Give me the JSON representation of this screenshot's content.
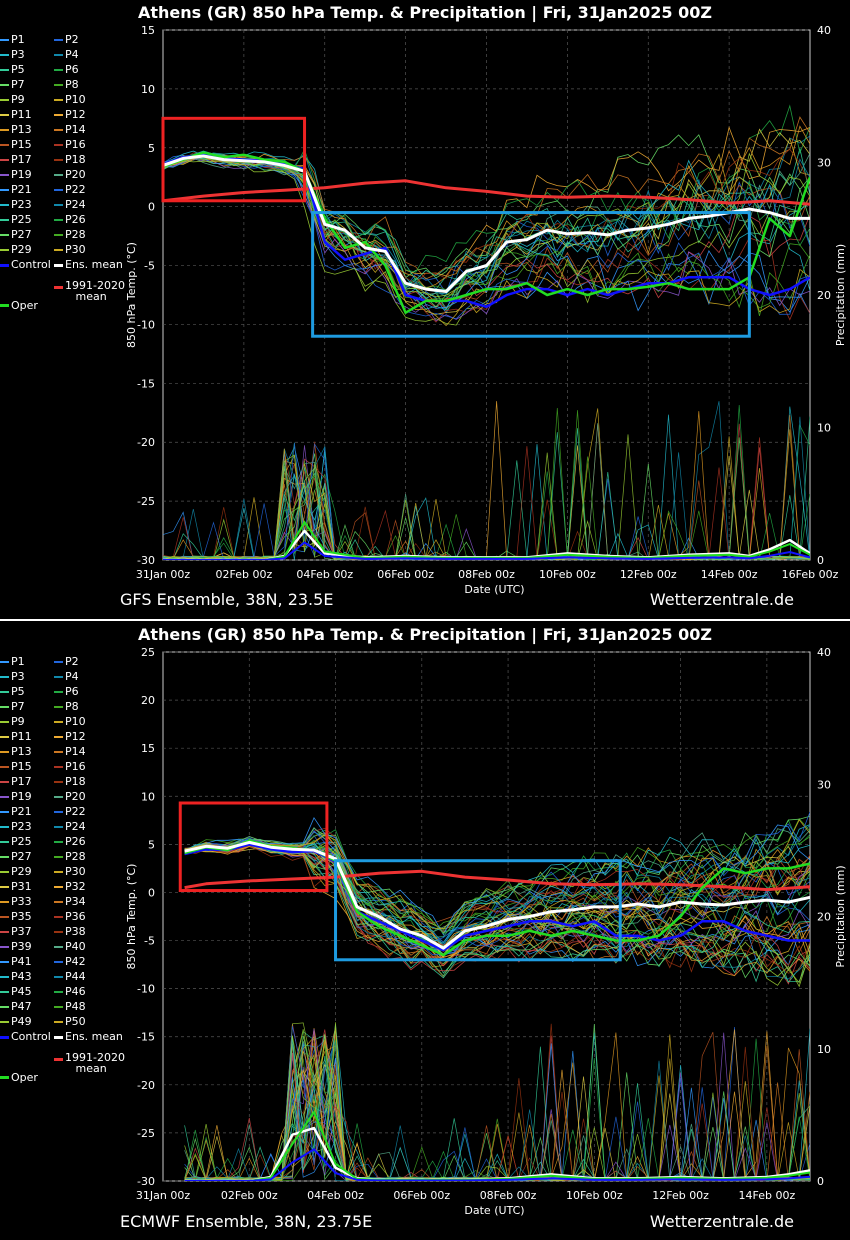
{
  "colors": {
    "control": "#1010ff",
    "mean": "#ffffff",
    "oper": "#22dd22",
    "climate": "#ee3333",
    "highlight_red": "#ee2222",
    "highlight_blue": "#1e9be0"
  },
  "chart_data": [
    {
      "type": "line",
      "title": "Athens  (GR)  850 hPa Temp. & Precipitation | Fri, 31Jan2025 00Z",
      "xlabel": "Date (UTC)",
      "ylabel": "850 hPa Temp. (°C)",
      "y2label": "Precipitation (mm)",
      "x_ticks": [
        "31Jan 00z",
        "02Feb 00z",
        "04Feb 00z",
        "06Feb 00z",
        "08Feb 00z",
        "10Feb 00z",
        "12Feb 00z",
        "14Feb 00z",
        "16Feb 00z"
      ],
      "y_ticks": [
        "15",
        "10",
        "5",
        "0",
        "-5",
        "-10",
        "-15",
        "-20",
        "-25",
        "-30"
      ],
      "y2_ticks": [
        "40",
        "30",
        "20",
        "10",
        "0"
      ],
      "ylim": [
        -30,
        15
      ],
      "y2lim": [
        0,
        40
      ],
      "xlim_days": [
        0,
        16
      ],
      "grid": true,
      "legend_placement": "left",
      "source": "GFS Ensemble, 38N, 23.5E",
      "credit": "Wetterzentrale.de",
      "members": [
        "P1",
        "P2",
        "P3",
        "P4",
        "P5",
        "P6",
        "P7",
        "P8",
        "P9",
        "P10",
        "P11",
        "P12",
        "P13",
        "P14",
        "P15",
        "P16",
        "P17",
        "P18",
        "P19",
        "P20",
        "P21",
        "P22",
        "P23",
        "P24",
        "P25",
        "P26",
        "P27",
        "P28",
        "P29",
        "P30"
      ],
      "special_legend": [
        "Control",
        "Ens. mean",
        "Oper",
        "1991-2020 mean"
      ],
      "series": [
        {
          "name": "Ens. mean",
          "x": [
            0,
            0.5,
            1,
            1.5,
            2,
            2.5,
            3,
            3.5,
            4,
            4.5,
            5,
            5.5,
            6,
            6.5,
            7,
            7.5,
            8,
            8.5,
            9,
            9.5,
            10,
            10.5,
            11,
            11.5,
            12,
            12.5,
            13,
            13.5,
            14,
            14.5,
            15,
            15.5,
            16
          ],
          "values": [
            3.5,
            4.1,
            4.3,
            4.0,
            3.9,
            3.8,
            3.5,
            3.0,
            -1.5,
            -2.0,
            -3.5,
            -3.8,
            -6.5,
            -7.0,
            -7.2,
            -5.5,
            -5.0,
            -3.0,
            -2.8,
            -2.0,
            -2.3,
            -2.2,
            -2.4,
            -2.0,
            -1.8,
            -1.5,
            -1.0,
            -0.8,
            -0.5,
            -0.2,
            -0.5,
            -1.0,
            -1.0
          ]
        },
        {
          "name": "Control",
          "x": [
            0,
            0.5,
            1,
            1.5,
            2,
            2.5,
            3,
            3.5,
            4,
            4.5,
            5,
            5.5,
            6,
            6.5,
            7,
            7.5,
            8,
            8.5,
            9,
            9.5,
            10,
            10.5,
            11,
            11.5,
            12,
            12.5,
            13,
            13.5,
            14,
            14.5,
            15,
            15.5,
            16
          ],
          "values": [
            3.6,
            4.2,
            4.4,
            4.1,
            4.0,
            3.9,
            3.6,
            3.2,
            -3.0,
            -4.5,
            -4.0,
            -3.5,
            -7.5,
            -8.0,
            -8.0,
            -8.0,
            -8.5,
            -7.5,
            -7.0,
            -7.0,
            -7.5,
            -7.0,
            -7.5,
            -7.0,
            -6.5,
            -6.5,
            -6.0,
            -6.0,
            -6.0,
            -7.0,
            -7.5,
            -7.0,
            -6.0
          ]
        },
        {
          "name": "Oper",
          "x": [
            0,
            0.5,
            1,
            1.5,
            2,
            2.5,
            3,
            3.5,
            4,
            4.5,
            5,
            5.5,
            6,
            6.5,
            7,
            7.5,
            8,
            8.5,
            9,
            9.5,
            10,
            10.5,
            11,
            11.5,
            12,
            12.5,
            13,
            13.5,
            14,
            14.5,
            15,
            15.5,
            16
          ],
          "values": [
            3.4,
            4.0,
            4.6,
            4.2,
            4.4,
            4.0,
            3.8,
            3.0,
            -1.0,
            -3.5,
            -3.0,
            -5.0,
            -9.0,
            -8.0,
            -8.0,
            -7.5,
            -7.0,
            -7.0,
            -6.5,
            -7.5,
            -7.0,
            -7.5,
            -7.0,
            -7.0,
            -6.8,
            -6.5,
            -7.0,
            -7.0,
            -7.0,
            -6.0,
            -1.0,
            -2.5,
            2.5
          ]
        },
        {
          "name": "1991-2020 mean",
          "x": [
            0,
            1,
            2,
            3,
            4,
            5,
            6,
            7,
            8,
            9,
            10,
            11,
            12,
            13,
            14,
            15,
            16
          ],
          "values": [
            0.5,
            0.9,
            1.2,
            1.4,
            1.6,
            2.0,
            2.2,
            1.6,
            1.3,
            0.9,
            0.8,
            0.9,
            0.8,
            0.6,
            0.3,
            0.5,
            0.2
          ]
        },
        {
          "name": "Precip mean",
          "x": [
            0,
            1,
            2,
            2.5,
            3,
            3.5,
            4,
            5,
            6,
            7,
            8,
            9,
            10,
            11,
            12,
            13,
            14,
            14.5,
            15,
            15.5,
            16
          ],
          "values": [
            0,
            0,
            0,
            0,
            0.3,
            2.2,
            0.5,
            0.2,
            0.3,
            0.2,
            0.2,
            0.2,
            0.5,
            0.3,
            0.2,
            0.4,
            0.5,
            0.3,
            0.8,
            1.5,
            0.5
          ]
        }
      ],
      "annotations": [
        {
          "type": "rect",
          "color": "red",
          "x": [
            0,
            3.5
          ],
          "y": [
            0.5,
            7.5
          ]
        },
        {
          "type": "rect",
          "color": "blue",
          "x": [
            3.7,
            14.5
          ],
          "y": [
            -11,
            -0.5
          ]
        }
      ]
    },
    {
      "type": "line",
      "title": "Athens  (GR)  850 hPa Temp. & Precipitation | Fri, 31Jan2025 00Z",
      "xlabel": "Date (UTC)",
      "ylabel": "850 hPa Temp. (°C)",
      "y2label": "Precipitation (mm)",
      "x_ticks": [
        "31Jan 00z",
        "02Feb 00z",
        "04Feb 00z",
        "06Feb 00z",
        "08Feb 00z",
        "10Feb 00z",
        "12Feb 00z",
        "14Feb 00z"
      ],
      "y_ticks": [
        "25",
        "20",
        "15",
        "10",
        "5",
        "0",
        "-5",
        "-10",
        "-15",
        "-20",
        "-25",
        "-30"
      ],
      "y2_ticks": [
        "40",
        "30",
        "20",
        "10",
        "0"
      ],
      "ylim": [
        -30,
        25
      ],
      "y2lim": [
        0,
        40
      ],
      "xlim_days": [
        0,
        15
      ],
      "grid": true,
      "legend_placement": "left",
      "source": "ECMWF Ensemble, 38N, 23.75E",
      "credit": "Wetterzentrale.de",
      "members": [
        "P1",
        "P2",
        "P3",
        "P4",
        "P5",
        "P6",
        "P7",
        "P8",
        "P9",
        "P10",
        "P11",
        "P12",
        "P13",
        "P14",
        "P15",
        "P16",
        "P17",
        "P18",
        "P19",
        "P20",
        "P21",
        "P22",
        "P23",
        "P24",
        "P25",
        "P26",
        "P27",
        "P28",
        "P29",
        "P30",
        "P31",
        "P32",
        "P33",
        "P34",
        "P35",
        "P36",
        "P37",
        "P38",
        "P39",
        "P40",
        "P41",
        "P42",
        "P43",
        "P44",
        "P45",
        "P46",
        "P47",
        "P48",
        "P49",
        "P50"
      ],
      "special_legend": [
        "Control",
        "Ens. mean",
        "Oper",
        "1991-2020 mean"
      ],
      "series": [
        {
          "name": "Ens. mean",
          "x": [
            0.5,
            1,
            1.5,
            2,
            2.5,
            3,
            3.5,
            4,
            4.5,
            5,
            5.5,
            6,
            6.5,
            7,
            7.5,
            8,
            8.5,
            9,
            9.5,
            10,
            10.5,
            11,
            11.5,
            12,
            12.5,
            13,
            13.5,
            14,
            14.5,
            15
          ],
          "values": [
            4.3,
            4.8,
            4.6,
            5.2,
            4.7,
            4.5,
            4.4,
            3.5,
            -1.5,
            -2.5,
            -3.8,
            -4.5,
            -5.8,
            -4.0,
            -3.5,
            -2.8,
            -2.5,
            -2.0,
            -1.8,
            -1.5,
            -1.5,
            -1.2,
            -1.5,
            -1.0,
            -1.2,
            -1.3,
            -1.0,
            -0.8,
            -1.0,
            -0.5
          ]
        },
        {
          "name": "Control",
          "x": [
            0.5,
            1,
            1.5,
            2,
            2.5,
            3,
            3.5,
            4,
            4.5,
            5,
            5.5,
            6,
            6.5,
            7,
            7.5,
            8,
            8.5,
            9,
            9.5,
            10,
            10.5,
            11,
            11.5,
            12,
            12.5,
            13,
            13.5,
            14,
            14.5,
            15
          ],
          "values": [
            4.0,
            4.5,
            4.4,
            5.0,
            4.5,
            4.2,
            4.3,
            3.2,
            -2.0,
            -3.0,
            -4.0,
            -5.0,
            -6.0,
            -4.5,
            -4.0,
            -3.5,
            -3.0,
            -3.0,
            -3.5,
            -3.0,
            -4.5,
            -4.5,
            -5.0,
            -4.5,
            -3.0,
            -3.0,
            -4.0,
            -4.5,
            -5.0,
            -5.0
          ]
        },
        {
          "name": "Oper",
          "x": [
            0.5,
            1,
            1.5,
            2,
            2.5,
            3,
            3.5,
            4,
            4.5,
            5,
            5.5,
            6,
            6.5,
            7,
            7.5,
            8,
            8.5,
            9,
            9.5,
            10,
            10.5,
            11,
            11.5,
            12,
            12.5,
            13,
            13.5,
            14,
            14.5,
            15
          ],
          "values": [
            4.1,
            4.7,
            4.4,
            5.4,
            4.8,
            4.6,
            4.4,
            3.3,
            -2.0,
            -3.5,
            -4.5,
            -5.5,
            -6.5,
            -5.0,
            -4.5,
            -4.5,
            -4.0,
            -4.5,
            -4.0,
            -4.5,
            -5.0,
            -5.0,
            -4.5,
            -2.5,
            0.5,
            2.5,
            2.0,
            2.5,
            2.5,
            3.0
          ]
        },
        {
          "name": "1991-2020 mean",
          "x": [
            0.5,
            1,
            2,
            3,
            4,
            5,
            6,
            7,
            8,
            9,
            10,
            11,
            12,
            13,
            14,
            15
          ],
          "values": [
            0.5,
            0.9,
            1.2,
            1.4,
            1.6,
            2.0,
            2.2,
            1.6,
            1.3,
            0.9,
            0.8,
            0.9,
            0.8,
            0.6,
            0.3,
            0.6
          ]
        },
        {
          "name": "Precip mean",
          "x": [
            0.5,
            1,
            2,
            2.5,
            3,
            3.5,
            4,
            4.5,
            5,
            6,
            7,
            8,
            9,
            10,
            11,
            12,
            13,
            14,
            14.5,
            15
          ],
          "values": [
            0,
            0,
            0,
            0.3,
            3.5,
            4.0,
            1.0,
            0.2,
            0.1,
            0.1,
            0.1,
            0.2,
            0.5,
            0.2,
            0.2,
            0.3,
            0.2,
            0.3,
            0.5,
            0.8
          ]
        }
      ],
      "annotations": [
        {
          "type": "rect",
          "color": "red",
          "x": [
            0.4,
            3.8
          ],
          "y": [
            0.2,
            9.3
          ]
        },
        {
          "type": "rect",
          "color": "blue",
          "x": [
            4.0,
            10.6
          ],
          "y": [
            -7,
            3.3
          ]
        }
      ]
    }
  ]
}
